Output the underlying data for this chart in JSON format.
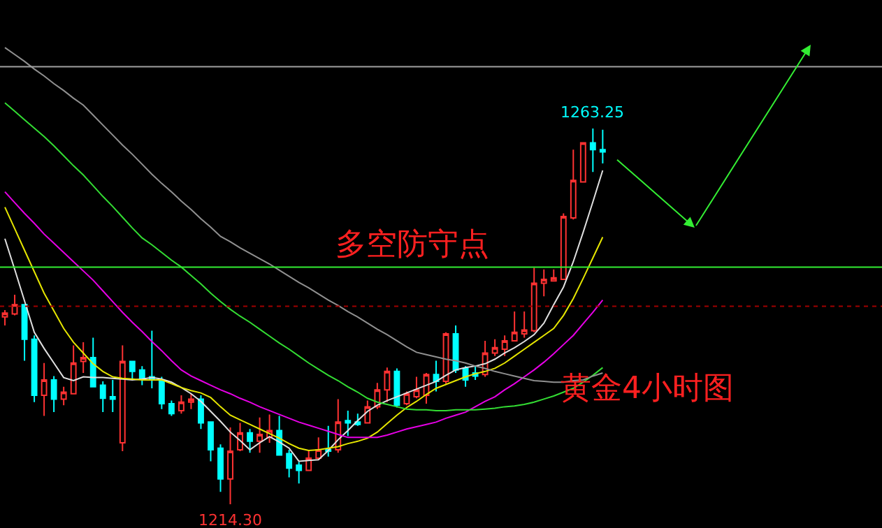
{
  "chart_data": {
    "type": "candlestick",
    "categories": [
      null,
      null,
      null,
      null,
      null,
      null,
      null,
      null,
      null,
      null,
      null,
      null,
      null,
      null,
      null,
      null,
      null,
      null,
      null,
      null,
      null,
      null,
      null,
      null,
      null,
      null,
      null,
      null,
      null,
      null,
      null,
      null,
      null,
      null,
      null,
      null,
      null,
      null,
      null,
      null,
      null,
      null,
      null,
      null,
      null,
      null,
      null,
      null,
      null,
      null,
      null,
      null,
      null,
      null,
      null,
      null,
      null,
      null,
      null,
      null,
      null,
      null,
      null,
      null,
      null,
      null,
      null,
      null,
      null,
      null,
      null,
      null,
      null,
      null,
      null,
      null,
      null,
      null,
      null,
      null,
      null,
      null,
      null,
      null,
      null,
      null,
      null,
      null,
      null,
      null
    ],
    "ohlc": [
      [
        1238.7,
        1239.6,
        1237.6,
        1239.2
      ],
      [
        1239.1,
        1241.6,
        1238.9,
        1240.3
      ],
      [
        1240.3,
        1240.3,
        1233.0,
        1235.8
      ],
      [
        1235.8,
        1236.3,
        1227.6,
        1228.5
      ],
      [
        1228.5,
        1232.7,
        1225.8,
        1230.5
      ],
      [
        1230.5,
        1231.0,
        1226.3,
        1228.0
      ],
      [
        1228.0,
        1229.6,
        1227.2,
        1228.9
      ],
      [
        1228.7,
        1235.0,
        1228.7,
        1232.7
      ],
      [
        1232.9,
        1235.4,
        1231.4,
        1233.4
      ],
      [
        1233.4,
        1236.0,
        1229.6,
        1229.6
      ],
      [
        1229.8,
        1230.3,
        1226.3,
        1228.1
      ],
      [
        1228.3,
        1230.5,
        1226.3,
        1228.0
      ],
      [
        1222.3,
        1235.0,
        1221.2,
        1232.9
      ],
      [
        1232.9,
        1232.9,
        1230.5,
        1231.6
      ],
      [
        1231.8,
        1232.3,
        1229.8,
        1230.7
      ],
      [
        1230.9,
        1236.9,
        1229.4,
        1230.5
      ],
      [
        1230.5,
        1230.9,
        1226.7,
        1227.4
      ],
      [
        1227.4,
        1227.8,
        1225.8,
        1226.1
      ],
      [
        1226.5,
        1228.5,
        1226.1,
        1227.6
      ],
      [
        1227.6,
        1228.7,
        1226.7,
        1228.0
      ],
      [
        1228.0,
        1228.5,
        1224.1,
        1224.9
      ],
      [
        1225.0,
        1225.0,
        1219.9,
        1221.4
      ],
      [
        1221.6,
        1222.1,
        1215.9,
        1217.6
      ],
      [
        1217.6,
        1224.3,
        1214.3,
        1221.2
      ],
      [
        1221.4,
        1224.9,
        1221.2,
        1223.6
      ],
      [
        1223.6,
        1224.1,
        1221.0,
        1222.5
      ],
      [
        1222.5,
        1225.6,
        1221.0,
        1223.4
      ],
      [
        1223.0,
        1226.0,
        1222.3,
        1223.9
      ],
      [
        1223.9,
        1225.8,
        1220.7,
        1220.7
      ],
      [
        1220.9,
        1221.4,
        1217.8,
        1219.0
      ],
      [
        1219.4,
        1219.8,
        1217.0,
        1218.7
      ],
      [
        1218.7,
        1221.4,
        1218.7,
        1220.3
      ],
      [
        1220.3,
        1223.0,
        1220.1,
        1221.4
      ],
      [
        1221.4,
        1224.5,
        1220.5,
        1221.2
      ],
      [
        1221.4,
        1228.0,
        1221.0,
        1225.0
      ],
      [
        1225.2,
        1226.5,
        1223.2,
        1224.9
      ],
      [
        1225.0,
        1226.1,
        1224.5,
        1224.7
      ],
      [
        1224.9,
        1227.8,
        1224.9,
        1227.0
      ],
      [
        1227.0,
        1230.1,
        1226.7,
        1229.2
      ],
      [
        1229.2,
        1232.1,
        1227.6,
        1231.6
      ],
      [
        1231.6,
        1232.0,
        1226.9,
        1227.2
      ],
      [
        1227.4,
        1229.0,
        1227.2,
        1228.7
      ],
      [
        1228.3,
        1230.9,
        1228.1,
        1229.2
      ],
      [
        1228.5,
        1231.4,
        1227.4,
        1231.2
      ],
      [
        1231.2,
        1233.0,
        1229.0,
        1230.3
      ],
      [
        1230.3,
        1236.7,
        1230.0,
        1236.5
      ],
      [
        1236.5,
        1237.6,
        1231.4,
        1231.8
      ],
      [
        1232.0,
        1232.3,
        1229.6,
        1230.5
      ],
      [
        1231.4,
        1232.3,
        1230.5,
        1231.0
      ],
      [
        1231.2,
        1235.6,
        1230.9,
        1234.0
      ],
      [
        1234.0,
        1235.8,
        1233.6,
        1234.7
      ],
      [
        1234.5,
        1236.3,
        1233.6,
        1235.6
      ],
      [
        1235.6,
        1239.4,
        1235.6,
        1236.7
      ],
      [
        1236.5,
        1239.4,
        1236.0,
        1237.0
      ],
      [
        1236.9,
        1245.1,
        1236.7,
        1243.1
      ],
      [
        1243.1,
        1244.9,
        1241.4,
        1243.6
      ],
      [
        1243.4,
        1244.9,
        1243.4,
        1243.8
      ],
      [
        1243.6,
        1252.2,
        1243.6,
        1251.8
      ],
      [
        1251.6,
        1260.5,
        1251.4,
        1256.5
      ],
      [
        1256.3,
        1261.4,
        1256.3,
        1261.4
      ],
      [
        1261.4,
        1263.25,
        1257.6,
        1260.5
      ],
      [
        1260.5,
        1263.1,
        1258.7,
        1260.2
      ],
      null,
      null,
      null,
      null,
      null,
      null,
      null,
      null,
      null,
      null,
      null,
      null,
      null,
      null,
      null,
      null,
      null,
      null,
      null,
      null,
      null,
      null,
      null,
      null,
      null,
      null,
      null,
      null
    ],
    "colors": [
      "#ff3232",
      "#ff3232",
      "#00ffff",
      "#00ffff",
      "#ff3232",
      "#00ffff",
      "#ff3232",
      "#ff3232",
      "#ff3232",
      "#00ffff",
      "#00ffff",
      "#00ffff",
      "#ff3232",
      "#00ffff",
      "#00ffff",
      "#00ffff",
      "#00ffff",
      "#00ffff",
      "#ff3232",
      "#ff3232",
      "#00ffff",
      "#00ffff",
      "#00ffff",
      "#ff3232",
      "#ff3232",
      "#00ffff",
      "#ff3232",
      "#ff3232",
      "#00ffff",
      "#00ffff",
      "#00ffff",
      "#ff3232",
      "#ff3232",
      "#00ffff",
      "#ff3232",
      "#00ffff",
      "#00ffff",
      "#ff3232",
      "#ff3232",
      "#ff3232",
      "#00ffff",
      "#ff3232",
      "#ff3232",
      "#ff3232",
      "#00ffff",
      "#ff3232",
      "#00ffff",
      "#00ffff",
      "#00ffff",
      "#ff3232",
      "#ff3232",
      "#ff3232",
      "#ff3232",
      "#ff3232",
      "#ff3232",
      "#ff3232",
      "#ff3232",
      "#ff3232",
      "#ff3232",
      "#ff3232",
      "#00ffff",
      "#00ffff",
      null,
      null,
      null,
      null,
      null,
      null,
      null,
      null,
      null,
      null,
      null,
      null,
      null,
      null,
      null,
      null,
      null,
      null,
      null,
      null,
      null,
      null,
      null,
      null,
      null,
      null,
      null,
      null
    ],
    "series": [
      {
        "type": "line",
        "color": "#e0e0e0",
        "values": [
          1248.9,
          1244.9,
          1240.8,
          1236.7,
          1234.6,
          1232.7,
          1230.8,
          1230.4,
          1230.9,
          1230.8,
          1230.8,
          1230.7,
          1230.6,
          1230.5,
          1230.6,
          1230.8,
          1230.6,
          1230.2,
          1229.5,
          1228.7,
          1227.7,
          1226.4,
          1225.1,
          1223.7,
          1222.6,
          1221.4,
          1222.3,
          1223.1,
          1222.4,
          1221.6,
          1219.9,
          1220.0,
          1220.1,
          1221.3,
          1222.7,
          1223.9,
          1225.2,
          1226.4,
          1227.2,
          1227.8,
          1228.3,
          1228.8,
          1229.3,
          1229.8,
          1230.3,
          1231.1,
          1231.8,
          1232.1,
          1232.3,
          1232.6,
          1233.2,
          1234.0,
          1234.7,
          1235.5,
          1236.4,
          1237.9,
          1240.3,
          1242.6,
          1245.9,
          1249.7,
          1253.7,
          1257.8,
          null,
          null,
          null,
          null,
          null,
          null,
          null,
          null,
          null,
          null,
          null,
          null,
          null,
          null,
          null,
          null,
          null,
          null,
          null,
          null,
          null,
          null,
          null,
          null,
          null,
          null,
          null,
          null
        ]
      },
      {
        "type": "line",
        "color": "#e6e600",
        "values": [
          1253.0,
          1250.2,
          1247.4,
          1244.6,
          1241.8,
          1239.5,
          1237.2,
          1235.4,
          1234.0,
          1232.6,
          1231.6,
          1230.9,
          1230.7,
          1230.6,
          1230.5,
          1230.5,
          1230.5,
          1230.0,
          1229.5,
          1229.1,
          1228.8,
          1228.2,
          1227.0,
          1225.9,
          1225.3,
          1224.7,
          1224.1,
          1223.5,
          1222.9,
          1222.2,
          1221.6,
          1221.3,
          1221.4,
          1221.6,
          1221.8,
          1222.2,
          1222.5,
          1222.9,
          1223.7,
          1224.8,
          1225.9,
          1226.9,
          1227.7,
          1228.6,
          1229.4,
          1229.9,
          1230.4,
          1230.9,
          1231.3,
          1231.6,
          1232.0,
          1232.7,
          1233.6,
          1234.5,
          1235.4,
          1236.3,
          1237.2,
          1238.9,
          1241.1,
          1243.7,
          1246.4,
          1249.1,
          null,
          null,
          null,
          null,
          null,
          null,
          null,
          null,
          null,
          null,
          null,
          null,
          null,
          null,
          null,
          null,
          null,
          null,
          null,
          null,
          null,
          null,
          null,
          null,
          null,
          null,
          null,
          null
        ]
      },
      {
        "type": "line",
        "color": "#e600e6",
        "values": [
          1255.0,
          1253.6,
          1252.2,
          1250.9,
          1249.5,
          1248.3,
          1247.1,
          1245.9,
          1244.7,
          1243.5,
          1242.1,
          1240.7,
          1239.3,
          1238.0,
          1236.8,
          1235.5,
          1234.3,
          1233.0,
          1231.8,
          1231.0,
          1230.4,
          1229.8,
          1229.2,
          1228.7,
          1228.1,
          1227.6,
          1227.0,
          1226.5,
          1226.0,
          1225.5,
          1225.0,
          1224.6,
          1224.2,
          1223.8,
          1223.4,
          1223.0,
          1223.0,
          1223.0,
          1223.0,
          1223.3,
          1223.7,
          1224.1,
          1224.4,
          1224.7,
          1225.0,
          1225.5,
          1225.9,
          1226.3,
          1227.0,
          1227.7,
          1228.3,
          1229.2,
          1230.0,
          1230.9,
          1231.8,
          1232.8,
          1233.9,
          1235.1,
          1236.3,
          1237.8,
          1239.3,
          1240.9,
          null,
          null,
          null,
          null,
          null,
          null,
          null,
          null,
          null,
          null,
          null,
          null,
          null,
          null,
          null,
          null,
          null,
          null,
          null,
          null,
          null,
          null,
          null,
          null,
          null,
          null,
          null,
          null
        ]
      },
      {
        "type": "line",
        "color": "#33dd33",
        "values": [
          1266.6,
          1265.5,
          1264.4,
          1263.3,
          1262.2,
          1261.0,
          1259.7,
          1258.4,
          1257.2,
          1255.8,
          1254.4,
          1253.1,
          1251.7,
          1250.3,
          1249.0,
          1248.1,
          1247.1,
          1246.1,
          1245.2,
          1244.1,
          1243.0,
          1241.8,
          1240.7,
          1239.7,
          1238.8,
          1238.0,
          1237.1,
          1236.2,
          1235.3,
          1234.5,
          1233.6,
          1232.7,
          1231.9,
          1231.1,
          1230.4,
          1229.6,
          1228.9,
          1228.1,
          1227.6,
          1227.3,
          1227.0,
          1226.7,
          1226.6,
          1226.6,
          1226.5,
          1226.5,
          1226.6,
          1226.6,
          1226.6,
          1226.7,
          1226.8,
          1227.0,
          1227.1,
          1227.3,
          1227.6,
          1228.0,
          1228.4,
          1228.9,
          1229.4,
          1230.2,
          1231.1,
          1232.1,
          null,
          null,
          null,
          null,
          null,
          null,
          null,
          null,
          null,
          null,
          null,
          null,
          null,
          null,
          null,
          null,
          null,
          null,
          null,
          null,
          null,
          null,
          null,
          null,
          null,
          null,
          null,
          null
        ]
      },
      {
        "type": "line",
        "color": "#909090",
        "values": [
          1273.8,
          1272.9,
          1272.0,
          1271.0,
          1270.1,
          1269.1,
          1268.2,
          1267.2,
          1266.3,
          1265.0,
          1263.7,
          1262.4,
          1261.1,
          1259.9,
          1258.6,
          1257.3,
          1256.1,
          1255.0,
          1253.8,
          1252.7,
          1251.5,
          1250.4,
          1249.2,
          1248.5,
          1247.7,
          1247.0,
          1246.3,
          1245.6,
          1244.8,
          1244.0,
          1243.2,
          1242.5,
          1241.7,
          1240.9,
          1240.2,
          1239.4,
          1238.7,
          1237.9,
          1237.1,
          1236.4,
          1235.6,
          1234.8,
          1234.1,
          1233.8,
          1233.5,
          1233.2,
          1233.0,
          1232.7,
          1232.3,
          1232.0,
          1231.6,
          1231.3,
          1231.0,
          1230.7,
          1230.4,
          1230.3,
          1230.2,
          1230.2,
          1230.4,
          1230.5,
          1231.0,
          1231.4,
          null,
          null,
          null,
          null,
          null,
          null,
          null,
          null,
          null,
          null,
          null,
          null,
          null,
          null,
          null,
          null,
          null,
          null,
          null,
          null,
          null,
          null,
          null,
          null,
          null,
          null,
          null,
          null
        ]
      }
    ],
    "ylim": [
      1211.2,
      1280
    ],
    "tick_labels": false,
    "grid": false,
    "ref_lines": [
      {
        "axis": "y",
        "value": 1271.3,
        "color": "#a0a0a0"
      },
      {
        "axis": "y",
        "value": 1245.2,
        "color": "#33ee33"
      },
      {
        "axis": "y",
        "value": 1240.1,
        "color": "#a00000",
        "line_style": "dotted"
      }
    ],
    "annotations": [
      {
        "text": "1263.25",
        "y": 1263.25
      },
      {
        "text": "1214.30",
        "y": 1214.3
      },
      "多空防守点",
      "黄金4小时图"
    ]
  }
}
